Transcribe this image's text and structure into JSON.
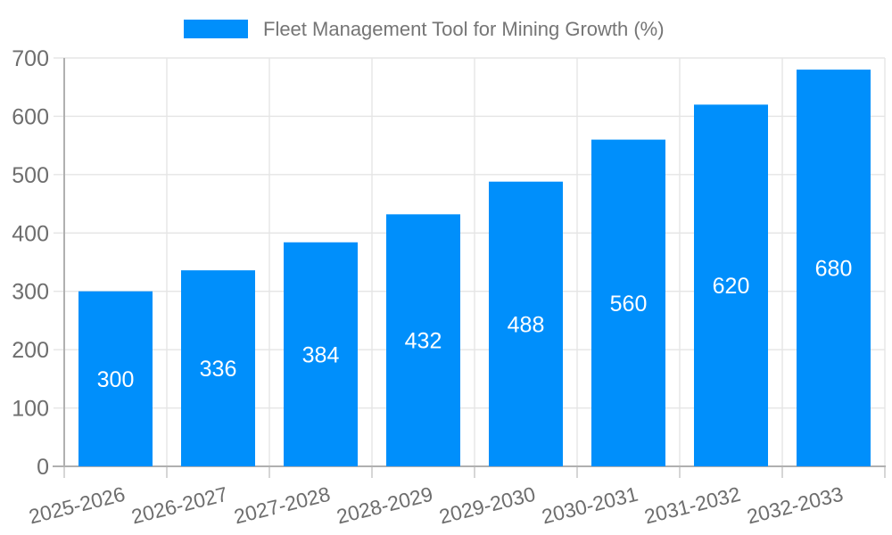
{
  "chart_data": {
    "type": "bar",
    "title": "Fleet Management Tool for Mining Growth (%)",
    "legend": {
      "label": "Fleet Management Tool for Mining Growth (%)",
      "position": "top"
    },
    "categories": [
      "2025-2026",
      "2026-2027",
      "2027-2028",
      "2028-2029",
      "2029-2030",
      "2030-2031",
      "2031-2032",
      "2032-2033"
    ],
    "values": [
      300,
      336,
      384,
      432,
      488,
      560,
      620,
      680
    ],
    "xlabel": "",
    "ylabel": "",
    "ylim": [
      0,
      700
    ],
    "yticks": [
      0,
      100,
      200,
      300,
      400,
      500,
      600,
      700
    ],
    "grid": true,
    "x_label_rotation_deg": -14,
    "colors": {
      "bar": "#008FFB",
      "value_label": "#ffffff",
      "axis_text": "#6e6e6e",
      "legend_text": "#757575",
      "grid_line": "#e5e5e5",
      "tick_line": "#cccccc",
      "axis_line": "#b0b0b0",
      "background": "#ffffff"
    }
  }
}
